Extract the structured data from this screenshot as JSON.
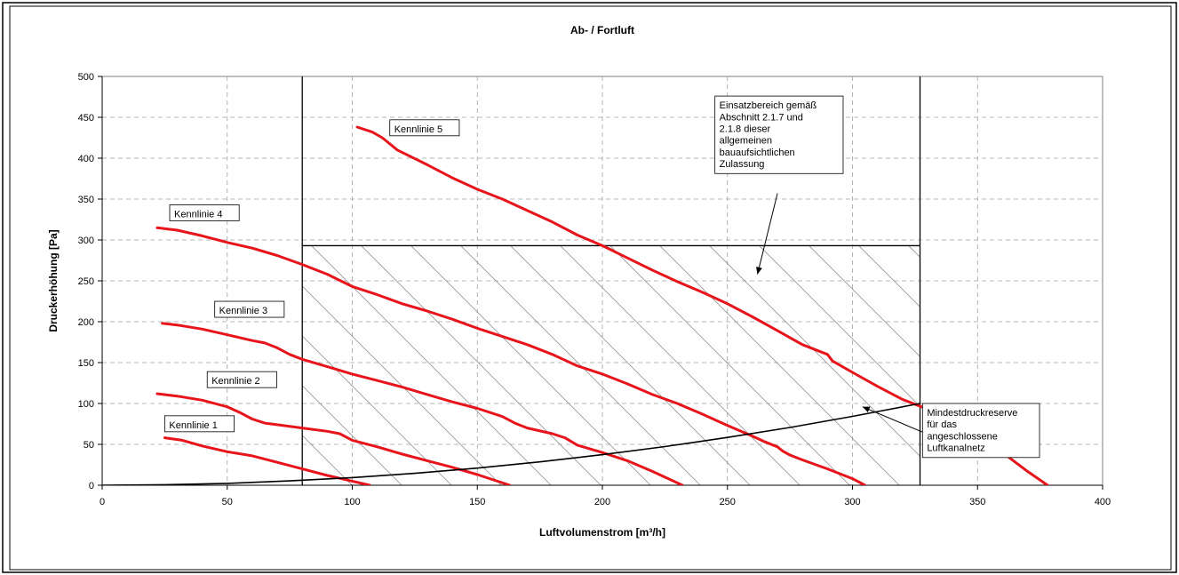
{
  "chart_data": {
    "type": "line",
    "title": "Ab- / Fortluft",
    "xlabel": "Luftvolumenstrom [m³/h]",
    "ylabel": "Druckerhöhung [Pa]",
    "xlim": [
      0,
      400
    ],
    "ylim": [
      0,
      500
    ],
    "xticks": [
      "0",
      "50",
      "100",
      "150",
      "200",
      "250",
      "300",
      "350",
      "400"
    ],
    "yticks": [
      "0",
      "50",
      "100",
      "150",
      "200",
      "250",
      "300",
      "350",
      "400",
      "450",
      "500"
    ],
    "grid": true,
    "colors": {
      "kennlinie": "#e8141b",
      "lines": "#000000",
      "hatch": "#808080",
      "grid": "#a0a0a0"
    },
    "series": [
      {
        "name": "Kennlinie 1",
        "label": "Kennlinie 1",
        "label_at": [
          25,
          73
        ],
        "x": [
          25,
          32,
          40,
          50,
          60,
          70,
          80,
          90,
          100,
          107
        ],
        "y": [
          58,
          55,
          48,
          41,
          36,
          28,
          20,
          12,
          5,
          0
        ]
      },
      {
        "name": "Kennlinie 2",
        "label": "Kennlinie 2",
        "label_at": [
          42,
          127
        ],
        "x": [
          22,
          30,
          40,
          50,
          55,
          60,
          65,
          70,
          80,
          90,
          95,
          100,
          110,
          120,
          130,
          140,
          150,
          163
        ],
        "y": [
          112,
          109,
          104,
          96,
          89,
          81,
          76,
          74,
          70,
          66,
          63,
          55,
          47,
          38,
          30,
          22,
          13,
          0
        ]
      },
      {
        "name": "Kennlinie 3",
        "label": "Kennlinie 3",
        "label_at": [
          45,
          213
        ],
        "x": [
          24,
          30,
          40,
          50,
          60,
          65,
          70,
          75,
          80,
          90,
          100,
          110,
          120,
          130,
          140,
          150,
          160,
          165,
          170,
          180,
          185,
          190,
          200,
          210,
          220,
          232
        ],
        "y": [
          198,
          196,
          191,
          184,
          177,
          174,
          168,
          160,
          154,
          145,
          136,
          128,
          120,
          111,
          102,
          94,
          84,
          76,
          70,
          63,
          58,
          49,
          40,
          30,
          17,
          0
        ]
      },
      {
        "name": "Kennlinie 4",
        "label": "Kennlinie 4",
        "label_at": [
          27,
          331
        ],
        "x": [
          22,
          30,
          40,
          50,
          60,
          70,
          80,
          90,
          100,
          110,
          120,
          130,
          140,
          150,
          160,
          170,
          180,
          190,
          200,
          210,
          220,
          230,
          240,
          250,
          260,
          265,
          270,
          272,
          275,
          280,
          290,
          300,
          305
        ],
        "y": [
          315,
          312,
          305,
          297,
          290,
          281,
          270,
          258,
          243,
          233,
          222,
          213,
          203,
          192,
          182,
          172,
          160,
          146,
          136,
          124,
          111,
          100,
          87,
          73,
          60,
          53,
          47,
          42,
          37,
          31,
          20,
          8,
          0
        ]
      },
      {
        "name": "Kennlinie 5",
        "label": "Kennlinie 5",
        "label_at": [
          115,
          435
        ],
        "x": [
          102,
          108,
          112,
          118,
          130,
          140,
          150,
          160,
          170,
          180,
          190,
          200,
          210,
          220,
          230,
          240,
          250,
          260,
          270,
          280,
          290,
          292,
          300,
          310,
          320,
          330,
          340,
          350,
          360,
          370,
          378
        ],
        "y": [
          438,
          432,
          425,
          410,
          392,
          376,
          362,
          350,
          336,
          322,
          306,
          293,
          278,
          263,
          249,
          236,
          222,
          206,
          189,
          172,
          160,
          152,
          138,
          121,
          105,
          93,
          80,
          60,
          40,
          17,
          0
        ]
      },
      {
        "name": "Mindestdruckreserve",
        "color": "#000000",
        "x": [
          0,
          25,
          50,
          75,
          100,
          125,
          150,
          175,
          200,
          225,
          250,
          275,
          300,
          327
        ],
        "y": [
          0,
          0.6,
          2.3,
          5.3,
          9.4,
          14.6,
          21.0,
          28.6,
          37.4,
          47.3,
          58.5,
          70.7,
          84.2,
          100
        ]
      }
    ],
    "operating_range": {
      "x_min": 80,
      "x_max": 327,
      "y_max": 293
    },
    "annotations": [
      {
        "text": "Einsatzbereich  gemäß\nAbschnitt 2.1.7 und\n2.1.8 dieser\nallgemeinen\nbauaufsichtlichen\nZulassung",
        "box_at": [
          245,
          476
        ],
        "arrow_from": [
          270,
          357
        ],
        "arrow_to": [
          262,
          258
        ]
      },
      {
        "text": "Mindestdruckreserve\nfür das\nangeschlossene\nLuftkanalnetz",
        "box_at": [
          328,
          100
        ],
        "arrow_from": [
          328,
          65
        ],
        "arrow_to": [
          304,
          96
        ]
      }
    ]
  }
}
